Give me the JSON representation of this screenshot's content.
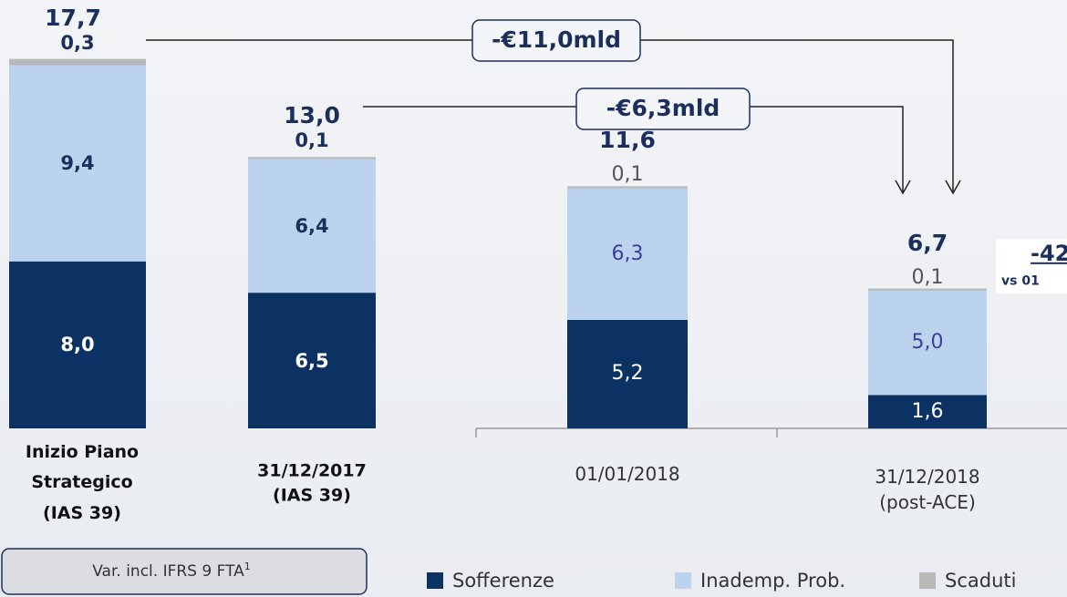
{
  "chart_data": {
    "type": "bar",
    "stacked": true,
    "categories": [
      "Inizio Piano\nStrategico\n(IAS 39)",
      "31/12/2017\n(IAS 39)",
      "01/01/2018",
      "31/12/2018\n(post-ACE)"
    ],
    "series": [
      {
        "name": "Sofferenze",
        "color": "#0b3263",
        "values": [
          8.0,
          6.5,
          5.2,
          1.6
        ],
        "value_labels": [
          "8,0",
          "6,5",
          "5,2",
          "1,6"
        ]
      },
      {
        "name": "Inademp. Prob.",
        "color": "#bcd3ee",
        "values": [
          9.4,
          6.4,
          6.3,
          5.0
        ],
        "value_labels": [
          "9,4",
          "6,4",
          "6,3",
          "5,0"
        ]
      },
      {
        "name": "Scaduti",
        "color": "#b8b8b8",
        "values": [
          0.3,
          0.1,
          0.1,
          0.1
        ],
        "value_labels": [
          "0,3",
          "0,1",
          "0,1",
          "0,1"
        ]
      }
    ],
    "totals": [
      17.7,
      13.0,
      11.6,
      6.7
    ],
    "total_labels": [
      "17,7",
      "13,0",
      "11,6",
      "6,7"
    ],
    "annotations": [
      "-€11,0mld",
      "-€6,3mld",
      "-42",
      "vs 01"
    ],
    "footnote": "Var. incl. IFRS 9 FTA",
    "footnote_mark": "1"
  }
}
